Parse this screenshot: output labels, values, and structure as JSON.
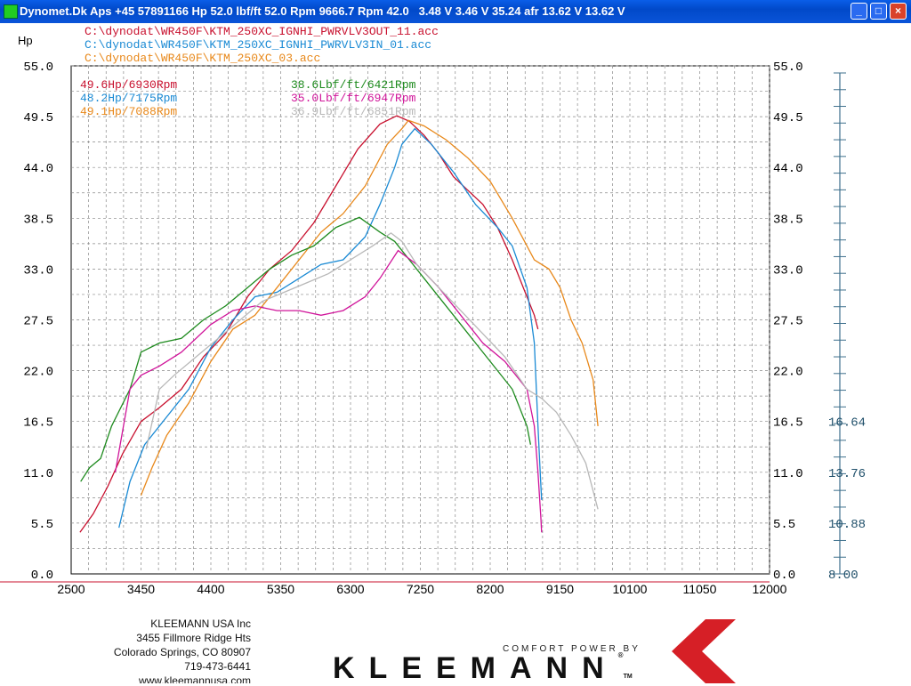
{
  "window": {
    "title": "Dynomet.Dk Aps +45 57891166 Hp 52.0 lbf/ft 52.0 Rpm 9666.7 Rpm 42.0   3.48 V 3.46 V 35.24 afr 13.62 V 13.62 V",
    "min_label": "_",
    "max_label": "□",
    "close_label": "×"
  },
  "files": [
    {
      "name": "C:\\dynodat\\WR450F\\KTM_250XC_IGNHI_PWRVLV3OUT_11.acc",
      "color": "#c8102e"
    },
    {
      "name": "C:\\dynodat\\WR450F\\KTM_250XC_IGNHI_PWRVLV3IN_01.acc",
      "color": "#1a8ad4"
    },
    {
      "name": "C:\\dynodat\\WR450F\\KTM_250XC_03.acc",
      "color": "#e8881a"
    }
  ],
  "peaks": {
    "hp": [
      {
        "text": "49.6Hp/6930Rpm",
        "color": "#c8102e"
      },
      {
        "text": "48.2Hp/7175Rpm",
        "color": "#1a8ad4"
      },
      {
        "text": "49.1Hp/7088Rpm",
        "color": "#e8881a"
      }
    ],
    "torque": [
      {
        "text": "38.6Lbf/ft/6421Rpm",
        "color": "#1d8a1d"
      },
      {
        "text": "35.0Lbf/ft/6947Rpm",
        "color": "#d0149a"
      },
      {
        "text": "36.9Lbf/ft/6851Rpm",
        "color": "#b8b8b8"
      }
    ]
  },
  "chart_data": {
    "type": "line",
    "ylabel": "Hp",
    "xlim": [
      2500,
      12000
    ],
    "ylim": [
      0,
      55
    ],
    "x_ticks": [
      2500,
      3450,
      4400,
      5350,
      6300,
      7250,
      8200,
      9150,
      10100,
      11050,
      12000
    ],
    "y_ticks": [
      "0.0",
      "5.5",
      "11.0",
      "16.5",
      "22.0",
      "27.5",
      "33.0",
      "38.5",
      "44.0",
      "49.5",
      "55.0"
    ],
    "right_y_ticks": [
      "0.0",
      "5.5",
      "11.0",
      "16.5",
      "22.0",
      "27.5",
      "33.0",
      "38.5",
      "44.0",
      "49.5",
      "55.0"
    ],
    "afr_scale": {
      "ylim": [
        8.0,
        19.52
      ],
      "labels": [
        "8.00",
        "10.88",
        "13.76",
        "16.64"
      ]
    },
    "grid": true,
    "series": [
      {
        "color": "#c8102e",
        "x": [
          2620,
          2800,
          3000,
          3200,
          3450,
          3700,
          4000,
          4300,
          4600,
          4900,
          5200,
          5500,
          5800,
          6100,
          6400,
          6700,
          6930,
          7100,
          7300,
          7500,
          7700,
          7900,
          8100,
          8300,
          8500,
          8650,
          8800,
          8850
        ],
        "y": [
          4.5,
          6.5,
          9.5,
          13,
          16.5,
          18,
          20,
          23.5,
          26,
          30,
          33,
          35,
          38,
          42,
          46,
          48.7,
          49.6,
          49,
          47.5,
          45.5,
          43,
          41.5,
          40,
          37.5,
          34,
          31,
          28,
          26.5
        ]
      },
      {
        "color": "#1a8ad4",
        "x": [
          3150,
          3300,
          3500,
          3800,
          4100,
          4400,
          4700,
          5000,
          5300,
          5600,
          5900,
          6200,
          6500,
          6700,
          6900,
          7000,
          7175,
          7400,
          7700,
          8000,
          8300,
          8500,
          8700,
          8800,
          8850,
          8880,
          8900
        ],
        "y": [
          5,
          10,
          14,
          17,
          20,
          24.5,
          27.5,
          30,
          30.5,
          32,
          33.5,
          34,
          36.5,
          40,
          44,
          46.5,
          48.2,
          46.5,
          43.5,
          40,
          37.5,
          35.5,
          31,
          25,
          16,
          11,
          8
        ]
      },
      {
        "color": "#e8881a",
        "x": [
          3450,
          3600,
          3800,
          4100,
          4400,
          4700,
          5000,
          5300,
          5600,
          5900,
          6200,
          6500,
          6800,
          7000,
          7088,
          7300,
          7600,
          7900,
          8200,
          8500,
          8800,
          9000,
          9150,
          9300,
          9450,
          9600,
          9666
        ],
        "y": [
          8.5,
          11.5,
          15,
          18.5,
          23,
          26.5,
          28,
          31,
          34,
          37,
          39,
          42,
          46.5,
          48.2,
          49.1,
          48.5,
          47,
          45,
          42.5,
          38.5,
          34,
          33,
          31,
          27.5,
          25,
          21,
          16
        ]
      },
      {
        "color": "#1d8a1d",
        "x": [
          2630,
          2750,
          2900,
          3050,
          3300,
          3450,
          3700,
          4000,
          4300,
          4600,
          4900,
          5200,
          5500,
          5800,
          6100,
          6421,
          6700,
          6900,
          7100,
          7400,
          7700,
          8000,
          8300,
          8500,
          8700,
          8750
        ],
        "y": [
          10,
          11.5,
          12.5,
          16,
          20,
          24,
          25,
          25.5,
          27.5,
          29,
          31,
          33,
          34.5,
          35.5,
          37.5,
          38.6,
          37,
          36,
          34,
          31,
          28,
          25,
          22,
          20,
          16,
          14
        ]
      },
      {
        "color": "#d0149a",
        "x": [
          3100,
          3300,
          3450,
          3700,
          4000,
          4400,
          4700,
          5000,
          5300,
          5600,
          5900,
          6200,
          6500,
          6700,
          6947,
          7200,
          7500,
          7800,
          8100,
          8400,
          8700,
          8800,
          8850,
          8890,
          8900
        ],
        "y": [
          11,
          20,
          21.5,
          22.5,
          24,
          27,
          28.5,
          29,
          28.5,
          28.5,
          28,
          28.5,
          30,
          32,
          35,
          33.5,
          31,
          28,
          25,
          23,
          20,
          16,
          11,
          6,
          4.5
        ]
      },
      {
        "color": "#b8b8b8",
        "x": [
          3520,
          3700,
          3900,
          4200,
          4500,
          4800,
          5100,
          5400,
          5700,
          6000,
          6300,
          6600,
          6851,
          7000,
          7200,
          7500,
          7800,
          8100,
          8400,
          8700,
          8900,
          9100,
          9300,
          9500,
          9666
        ],
        "y": [
          13.5,
          20,
          21.5,
          23.5,
          25.5,
          27.5,
          29.5,
          30.5,
          31.5,
          32.5,
          34,
          35.5,
          36.9,
          36,
          33.5,
          31,
          28.5,
          26,
          23.5,
          20,
          19,
          17.5,
          15,
          12,
          7
        ]
      }
    ]
  },
  "footer": {
    "company": "KLEEMANN USA Inc",
    "street": "3455 Fillmore Ridge Hts",
    "city": "Colorado Springs, CO 80907",
    "phone": "719-473-6441",
    "web": "www.kleemannusa.com",
    "tagline": "COMFORT POWER BY",
    "brand": "KLEEMANN",
    "reg": "®",
    "tm": "TM"
  }
}
